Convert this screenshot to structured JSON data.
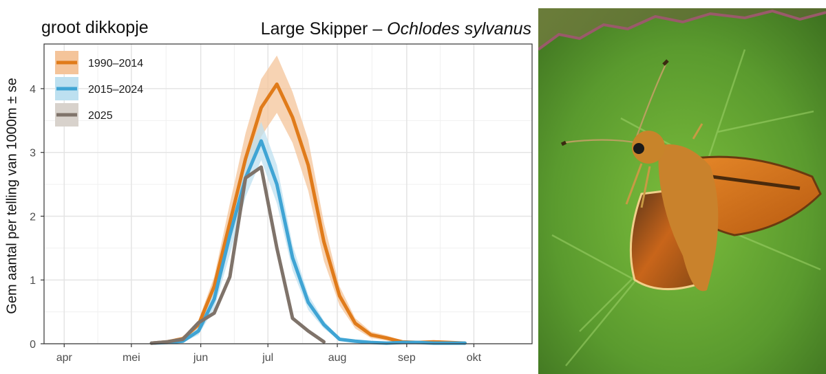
{
  "titles": {
    "dutch": "groot dikkopje",
    "english": "Large Skipper – ",
    "latin": "Ochlodes sylvanus"
  },
  "photo": {
    "description_icon": "butterfly-photo-icon",
    "leaf_color": "#5a9a2e",
    "wing_color": "#d9741a"
  },
  "chart_data": {
    "type": "line",
    "ylabel": "Gem aantal per telling van 1000m ± se",
    "xlabel": "",
    "ylim": [
      0,
      4.7
    ],
    "yticks": [
      0,
      1,
      2,
      3,
      4
    ],
    "x_axis": {
      "unit": "day of year",
      "range": [
        82,
        300
      ],
      "ticks": [
        {
          "label": "apr",
          "x": 91
        },
        {
          "label": "mei",
          "x": 121
        },
        {
          "label": "jun",
          "x": 152
        },
        {
          "label": "jul",
          "x": 182
        },
        {
          "label": "aug",
          "x": 213
        },
        {
          "label": "sep",
          "x": 244
        },
        {
          "label": "okt",
          "x": 274
        }
      ]
    },
    "grid": true,
    "legend_position": "top-left",
    "series": [
      {
        "name": "1990–2014",
        "color": "#e07b1a",
        "band_color": "#f4c49a",
        "x": [
          130,
          137,
          144,
          151,
          158,
          165,
          172,
          179,
          186,
          193,
          200,
          207,
          214,
          221,
          228,
          235,
          242,
          249,
          256,
          263,
          270
        ],
        "y": [
          0.01,
          0.03,
          0.08,
          0.3,
          0.9,
          1.9,
          2.9,
          3.7,
          4.07,
          3.55,
          2.8,
          1.6,
          0.75,
          0.32,
          0.14,
          0.09,
          0.03,
          0.02,
          0.03,
          0.02,
          0.01
        ],
        "se": [
          0.01,
          0.01,
          0.03,
          0.07,
          0.15,
          0.3,
          0.4,
          0.45,
          0.45,
          0.4,
          0.4,
          0.3,
          0.15,
          0.08,
          0.05,
          0.04,
          0.02,
          0.01,
          0.01,
          0.01,
          0.01
        ]
      },
      {
        "name": "2015–2024",
        "color": "#3fa4d4",
        "band_color": "#bde0f0",
        "x": [
          130,
          137,
          144,
          151,
          158,
          165,
          172,
          179,
          186,
          193,
          200,
          207,
          214,
          221,
          228,
          235,
          242,
          249,
          256,
          263,
          270
        ],
        "y": [
          0.01,
          0.02,
          0.04,
          0.2,
          0.7,
          1.7,
          2.6,
          3.18,
          2.5,
          1.35,
          0.65,
          0.3,
          0.07,
          0.04,
          0.02,
          0.01,
          0.02,
          0.02,
          0.01,
          0.01,
          0.01
        ],
        "se": [
          0.01,
          0.01,
          0.02,
          0.06,
          0.15,
          0.3,
          0.3,
          0.3,
          0.3,
          0.2,
          0.12,
          0.06,
          0.02,
          0.01,
          0.01,
          0.01,
          0.01,
          0.01,
          0.01,
          0.01,
          0.01
        ]
      },
      {
        "name": "2025",
        "color": "#7f736a",
        "band_color": "#d8d2cc",
        "x": [
          130,
          137,
          144,
          151,
          158,
          165,
          172,
          179,
          186,
          193,
          200,
          207
        ],
        "y": [
          0.01,
          0.03,
          0.07,
          0.33,
          0.48,
          1.05,
          2.6,
          2.77,
          1.5,
          0.4,
          0.2,
          0.03
        ],
        "se": [
          0,
          0,
          0,
          0,
          0,
          0,
          0,
          0,
          0,
          0,
          0,
          0
        ]
      }
    ]
  }
}
